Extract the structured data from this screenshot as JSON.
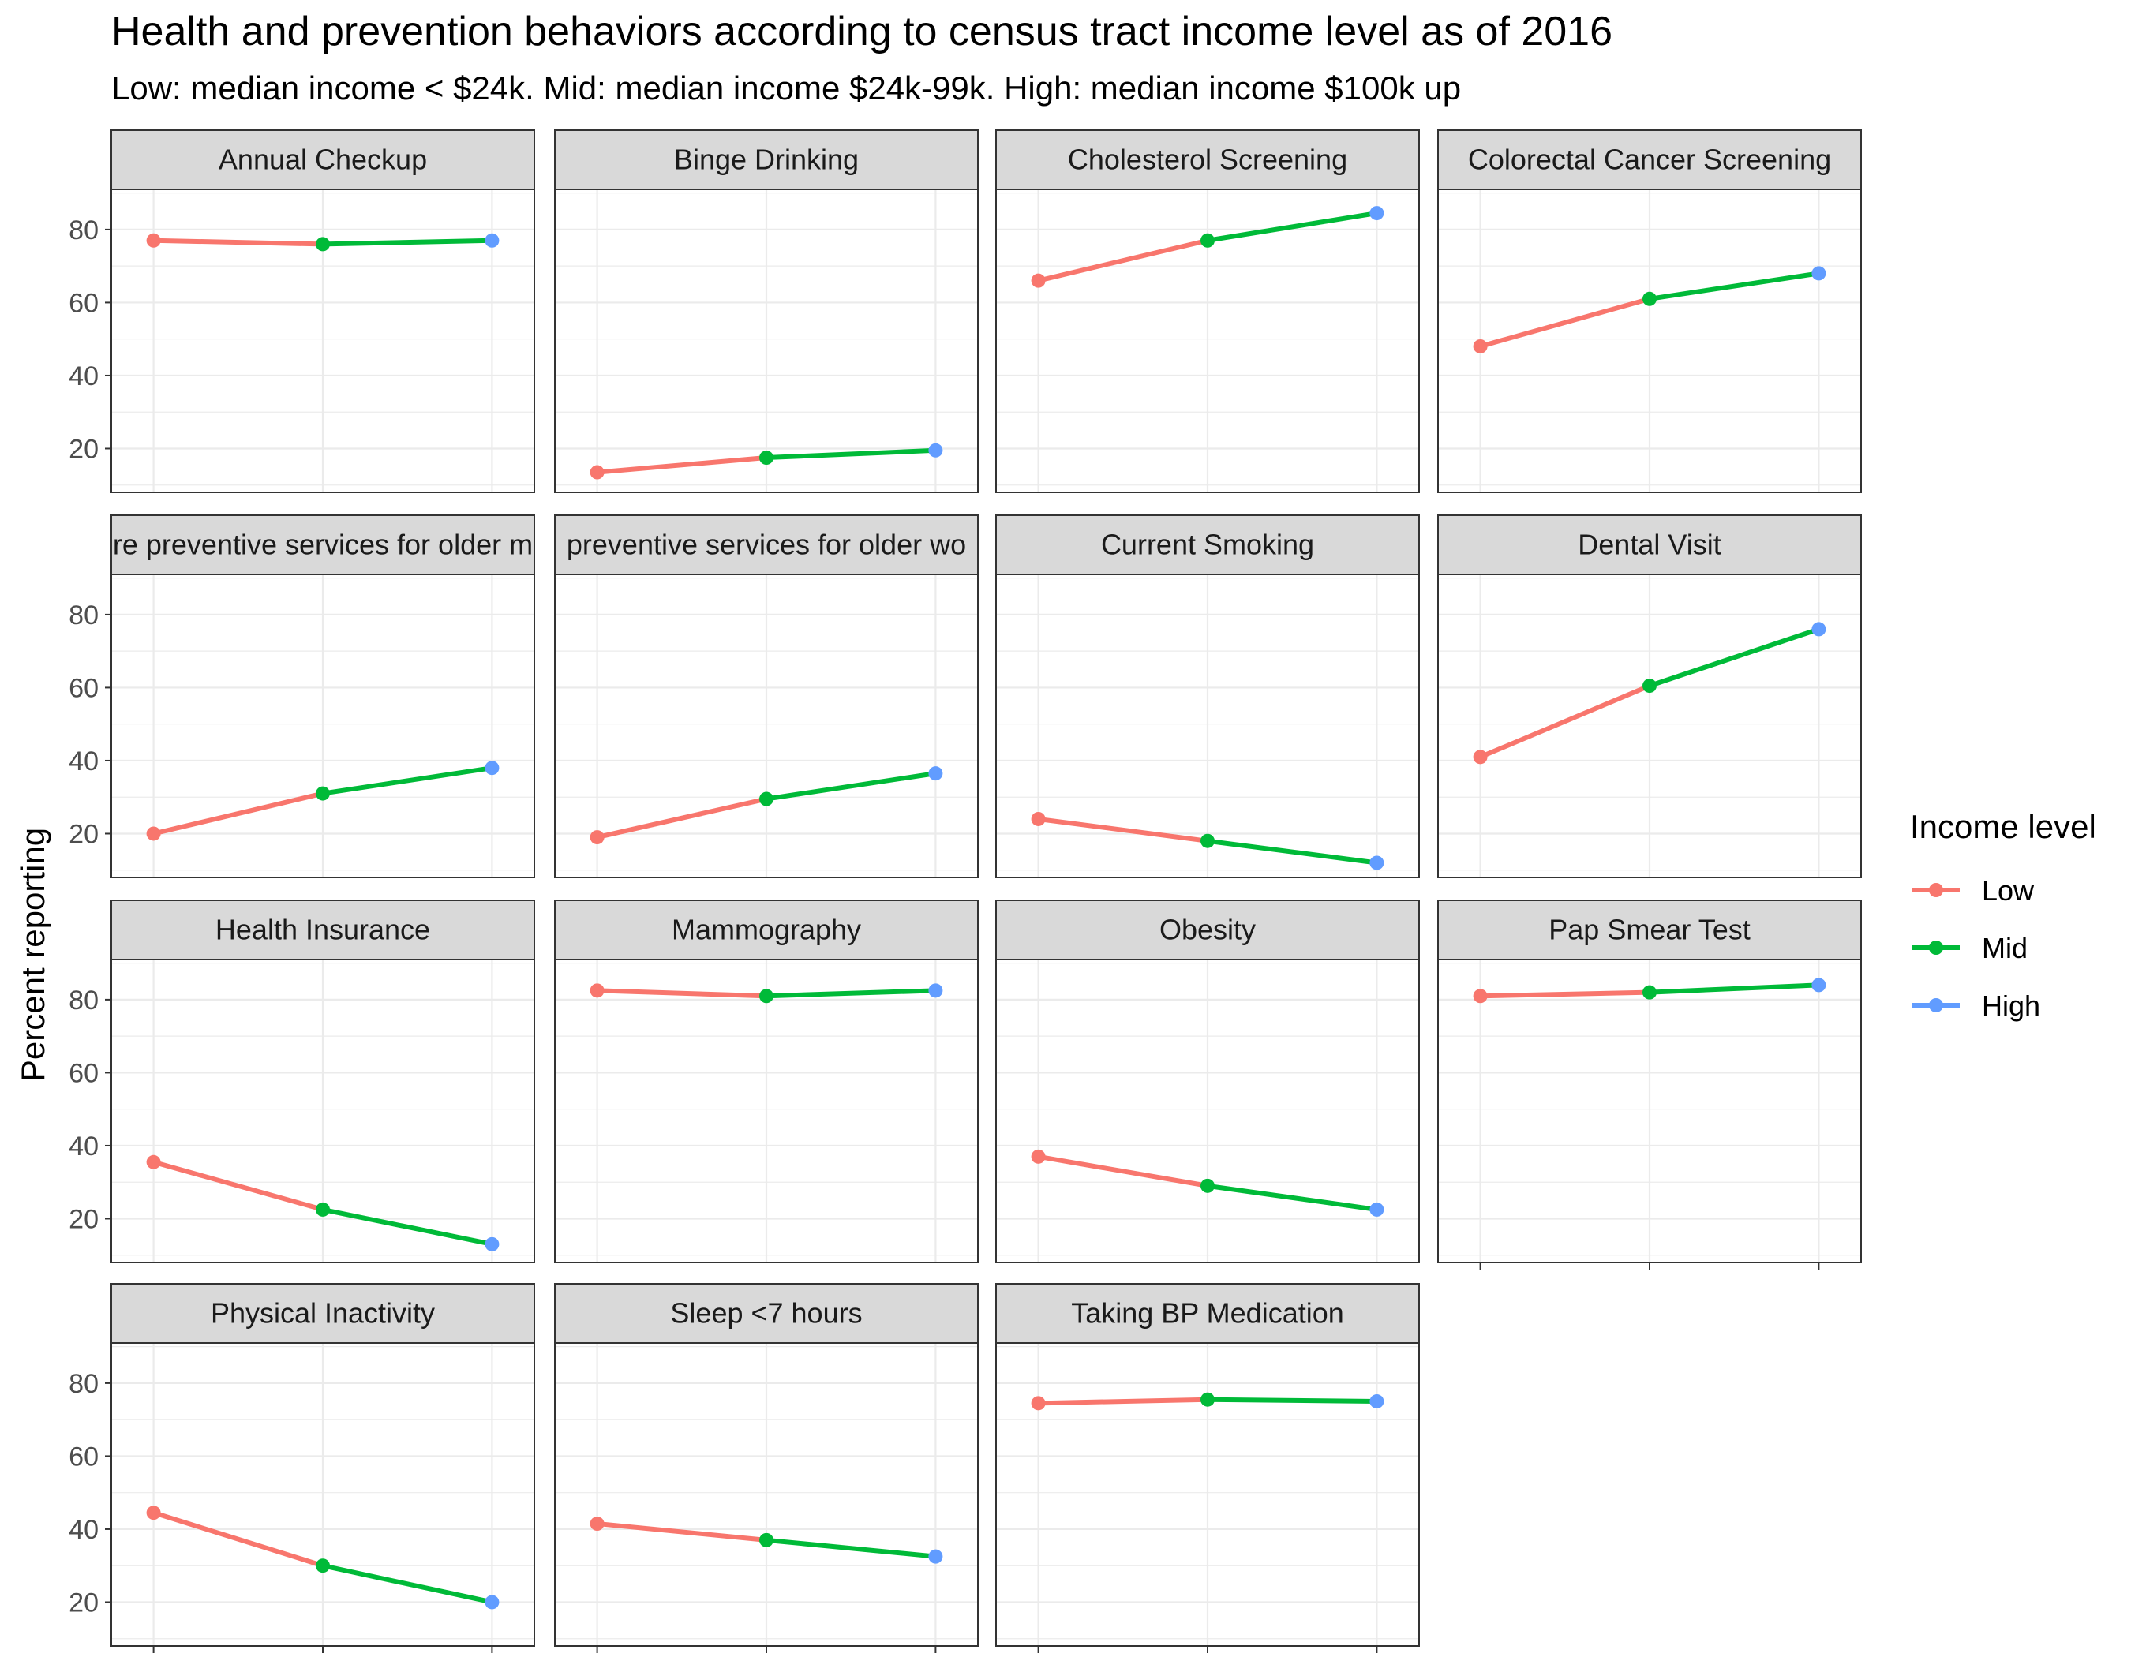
{
  "chart_data": {
    "type": "line",
    "title": "Health and prevention behaviors according to census tract income level as of 2016",
    "subtitle": "Low: median income < $24k. Mid: median income $24k-99k. High: median income $100k up",
    "ylabel": "Percent reporting",
    "xlabel": "",
    "x": [
      "Low",
      "Mid",
      "High"
    ],
    "ylim": [
      8,
      91
    ],
    "yticks": [
      20,
      40,
      60,
      80
    ],
    "grid": true,
    "facet_layout": {
      "cols": 4,
      "rows": 4
    },
    "legend": {
      "title": "Income level",
      "position": "right",
      "items": [
        {
          "label": "Low",
          "color": "#F8766D"
        },
        {
          "label": "Mid",
          "color": "#00BA38"
        },
        {
          "label": "High",
          "color": "#619CFF"
        }
      ]
    },
    "colors": {
      "Low": "#F8766D",
      "Mid": "#00BA38",
      "High": "#619CFF",
      "strip_fill": "#d9d9d9",
      "panel_border": "#333333",
      "grid": "#ebebeb"
    },
    "facets": [
      {
        "label": "Annual Checkup",
        "values": [
          77,
          76,
          77
        ]
      },
      {
        "label": "Binge Drinking",
        "values": [
          13.5,
          17.5,
          19.5
        ]
      },
      {
        "label": "Cholesterol Screening",
        "values": [
          66,
          77,
          84.5
        ]
      },
      {
        "label": "Colorectal Cancer Screening",
        "values": [
          48,
          61,
          68
        ]
      },
      {
        "label": "re preventive services for older m",
        "values": [
          20,
          31,
          38
        ]
      },
      {
        "label": "preventive services for older wo",
        "values": [
          19,
          29.5,
          36.5
        ]
      },
      {
        "label": "Current Smoking",
        "values": [
          24,
          18,
          12
        ]
      },
      {
        "label": "Dental Visit",
        "values": [
          41,
          60.5,
          76
        ]
      },
      {
        "label": "Health Insurance",
        "values": [
          35.5,
          22.5,
          13
        ]
      },
      {
        "label": "Mammography",
        "values": [
          82.5,
          81,
          82.5
        ]
      },
      {
        "label": "Obesity",
        "values": [
          37,
          29,
          22.5
        ]
      },
      {
        "label": "Pap Smear Test",
        "values": [
          81,
          82,
          84
        ]
      },
      {
        "label": "Physical Inactivity",
        "values": [
          44.5,
          30,
          20
        ]
      },
      {
        "label": "Sleep <7 hours",
        "values": [
          41.5,
          37,
          32.5
        ]
      },
      {
        "label": "Taking BP Medication",
        "values": [
          74.5,
          75.5,
          75
        ]
      }
    ]
  }
}
